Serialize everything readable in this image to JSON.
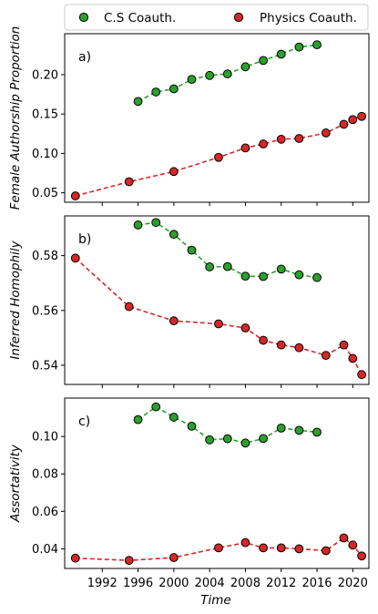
{
  "legend": {
    "items": [
      {
        "label": "C.S Coauth.",
        "color": "#2ca02c"
      },
      {
        "label": "Physics Coauth.",
        "color": "#d62728"
      }
    ]
  },
  "xaxis": {
    "label": "Time",
    "ticks": [
      1992,
      1996,
      2000,
      2004,
      2008,
      2012,
      2016,
      2020
    ],
    "xlim": [
      1987.8,
      2021.8
    ]
  },
  "chart_data": [
    {
      "type": "line",
      "panel_label": "a)",
      "ylabel": "Female Authorship Proportion",
      "ylim": [
        0.038,
        0.252
      ],
      "yticks": [
        0.05,
        0.1,
        0.15,
        0.2
      ],
      "ytick_labels": [
        "0.05",
        "0.10",
        "0.15",
        "0.20"
      ],
      "series": [
        {
          "name": "C.S Coauth.",
          "color": "#2ca02c",
          "x": [
            1996,
            1998,
            2000,
            2002,
            2004,
            2006,
            2008,
            2010,
            2012,
            2014,
            2016
          ],
          "y": [
            0.166,
            0.178,
            0.182,
            0.194,
            0.199,
            0.201,
            0.21,
            0.218,
            0.226,
            0.235,
            0.238
          ]
        },
        {
          "name": "Physics Coauth.",
          "color": "#d62728",
          "x": [
            1989,
            1995,
            2000,
            2005,
            2008,
            2010,
            2012,
            2014,
            2017,
            2019,
            2020,
            2021
          ],
          "y": [
            0.046,
            0.064,
            0.077,
            0.095,
            0.107,
            0.112,
            0.118,
            0.119,
            0.126,
            0.137,
            0.143,
            0.147
          ]
        }
      ]
    },
    {
      "type": "line",
      "panel_label": "b)",
      "ylabel": "Inferred Homophily",
      "ylim": [
        0.533,
        0.5945
      ],
      "yticks": [
        0.54,
        0.56,
        0.58
      ],
      "ytick_labels": [
        "0.54",
        "0.56",
        "0.58"
      ],
      "series": [
        {
          "name": "C.S Coauth.",
          "color": "#2ca02c",
          "x": [
            1996,
            1998,
            2000,
            2002,
            2004,
            2006,
            2008,
            2010,
            2012,
            2014,
            2016
          ],
          "y": [
            0.5912,
            0.5921,
            0.5878,
            0.582,
            0.5759,
            0.576,
            0.5725,
            0.5724,
            0.5751,
            0.573,
            0.572
          ]
        },
        {
          "name": "Physics Coauth.",
          "color": "#d62728",
          "x": [
            1989,
            1995,
            2000,
            2005,
            2008,
            2010,
            2012,
            2014,
            2017,
            2019,
            2020,
            2021
          ],
          "y": [
            0.5791,
            0.5614,
            0.5562,
            0.5551,
            0.5536,
            0.5491,
            0.5474,
            0.5464,
            0.5436,
            0.5474,
            0.5425,
            0.5366
          ]
        }
      ]
    },
    {
      "type": "line",
      "panel_label": "c)",
      "ylabel": "Assortativity",
      "ylim": [
        0.0295,
        0.1205
      ],
      "yticks": [
        0.04,
        0.06,
        0.08,
        0.1
      ],
      "ytick_labels": [
        "0.04",
        "0.06",
        "0.08",
        "0.10"
      ],
      "series": [
        {
          "name": "C.S Coauth.",
          "color": "#2ca02c",
          "x": [
            1996,
            1998,
            2000,
            2002,
            2004,
            2006,
            2008,
            2010,
            2012,
            2014,
            2016
          ],
          "y": [
            0.109,
            0.1158,
            0.1103,
            0.1055,
            0.0982,
            0.0988,
            0.0965,
            0.0989,
            0.1045,
            0.1033,
            0.1023
          ]
        },
        {
          "name": "Physics Coauth.",
          "color": "#d62728",
          "x": [
            1989,
            1995,
            2000,
            2005,
            2008,
            2010,
            2012,
            2014,
            2017,
            2019,
            2020,
            2021
          ],
          "y": [
            0.035,
            0.0338,
            0.0353,
            0.0405,
            0.0433,
            0.0405,
            0.0405,
            0.04,
            0.039,
            0.0458,
            0.042,
            0.0362
          ]
        }
      ]
    }
  ]
}
